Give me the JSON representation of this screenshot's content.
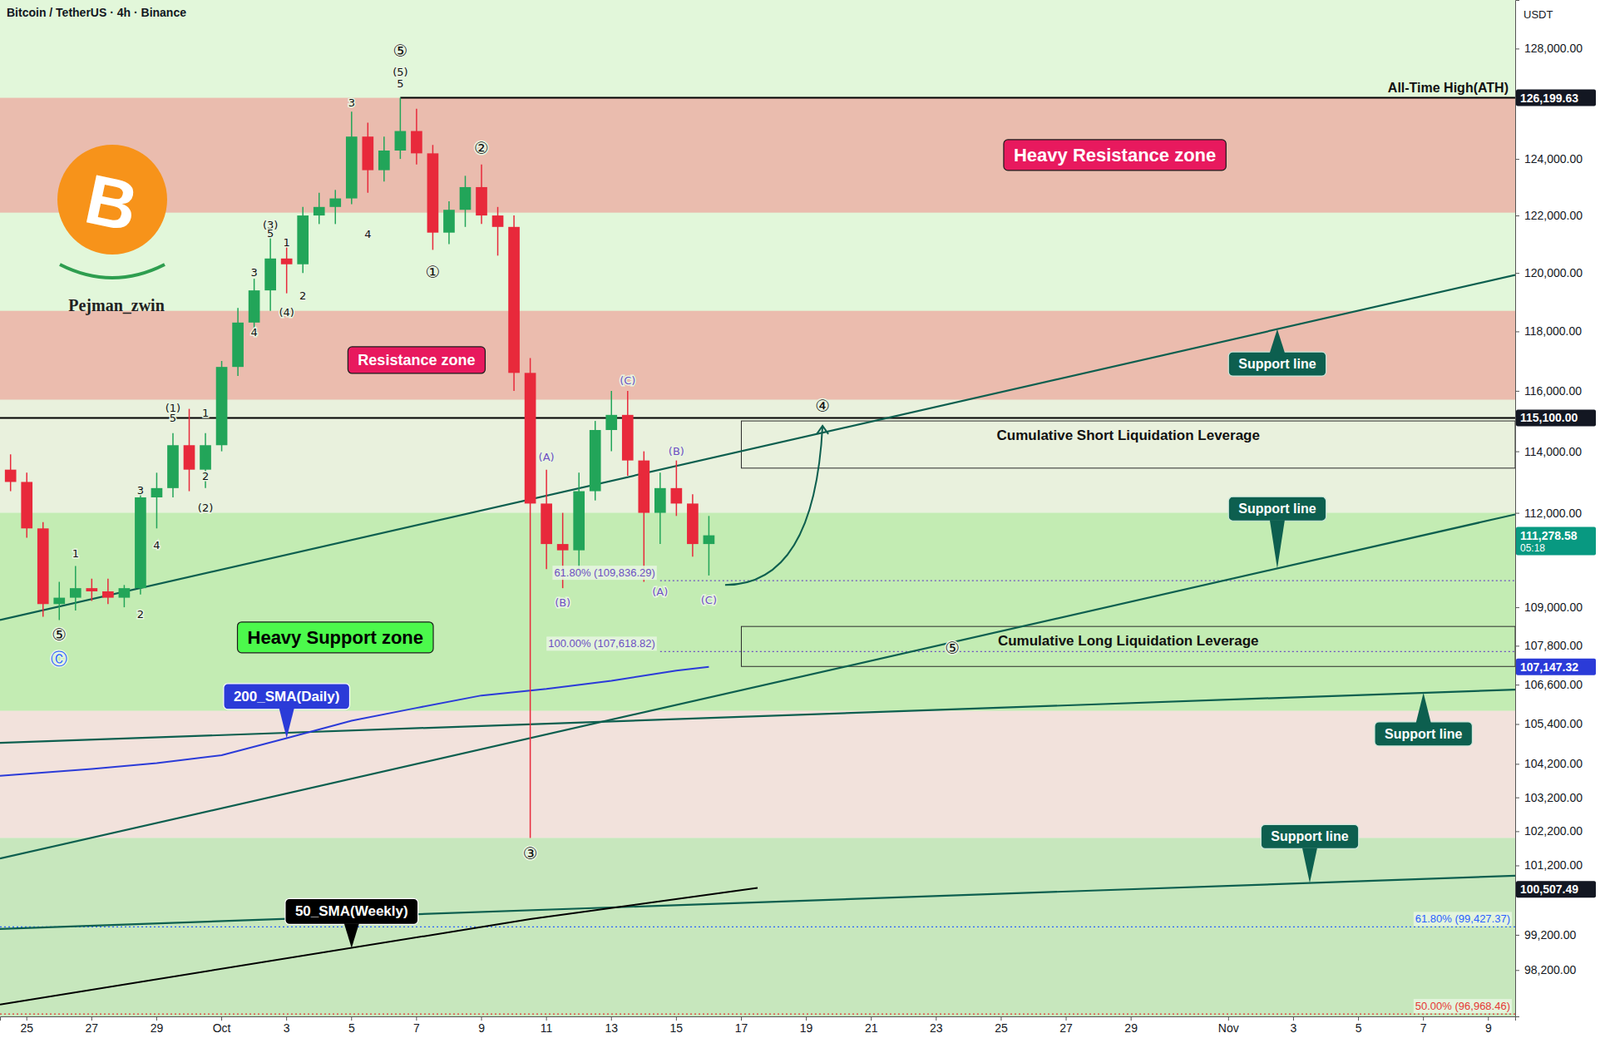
{
  "chart_data": {
    "type": "candlestick",
    "title": "Bitcoin / TetherUS · 4h · Binance",
    "y_label": "USDT",
    "log": "y",
    "grid": false,
    "ylim": [
      96900,
      129800
    ],
    "yticks": [
      {
        "value": 128000,
        "label": "128,000.00"
      },
      {
        "value": 124000,
        "label": "124,000.00"
      },
      {
        "value": 122000,
        "label": "122,000.00"
      },
      {
        "value": 120000,
        "label": "120,000.00"
      },
      {
        "value": 118000,
        "label": "118,000.00"
      },
      {
        "value": 116000,
        "label": "116,000.00"
      },
      {
        "value": 114000,
        "label": "114,000.00"
      },
      {
        "value": 112000,
        "label": "112,000.00"
      },
      {
        "value": 109000,
        "label": "109,000.00"
      },
      {
        "value": 107800,
        "label": "107,800.00"
      },
      {
        "value": 106600,
        "label": "106,600.00"
      },
      {
        "value": 105400,
        "label": "105,400.00"
      },
      {
        "value": 104200,
        "label": "104,200.00"
      },
      {
        "value": 103200,
        "label": "103,200.00"
      },
      {
        "value": 102200,
        "label": "102,200.00"
      },
      {
        "value": 101200,
        "label": "101,200.00"
      },
      {
        "value": 99200,
        "label": "99,200.00"
      },
      {
        "value": 98200,
        "label": "98,200.00"
      }
    ],
    "categories": [
      null,
      "25",
      null,
      null,
      null,
      "27",
      null,
      null,
      null,
      "29",
      null,
      null,
      null,
      "Oct",
      null,
      null,
      null,
      "3",
      null,
      null,
      null,
      "5",
      null,
      null,
      null,
      "7",
      null,
      null,
      null,
      "9",
      null,
      null,
      null,
      "11",
      null,
      null,
      null,
      "13",
      null,
      null,
      null,
      "15",
      null,
      null,
      null,
      "17",
      null,
      null,
      null,
      "19",
      null,
      null,
      null,
      "21",
      null,
      null,
      null,
      "23",
      null,
      null,
      null,
      "25",
      null,
      null,
      null,
      "27",
      null,
      null,
      null,
      "29",
      null,
      null,
      null,
      null,
      null,
      "Nov",
      null,
      null,
      null,
      "3",
      null,
      null,
      null,
      "5",
      null,
      null,
      null,
      "7",
      null,
      null,
      null,
      "9",
      null
    ],
    "open": [
      113400,
      113000,
      111500,
      109100,
      109300,
      109600,
      109500,
      109300,
      109600,
      112500,
      112800,
      114200,
      113400,
      114200,
      116800,
      118300,
      119400,
      120500,
      120300,
      122000,
      122300,
      122600,
      124800,
      123600,
      124300,
      125000,
      124200,
      121400,
      122200,
      123000,
      122000,
      121600,
      116600,
      112300,
      111000,
      110800,
      112700,
      114700,
      115200,
      113700,
      112000,
      112800,
      112300,
      111000,
      null,
      null,
      null,
      null,
      null,
      null,
      null,
      null,
      null,
      null,
      null,
      null,
      null,
      null,
      null,
      null,
      null,
      null,
      null,
      null,
      null,
      null,
      null,
      null,
      null,
      null,
      null,
      null,
      null,
      null,
      null,
      null,
      null,
      null,
      null,
      null,
      null,
      null,
      null,
      null,
      null,
      null,
      null,
      null,
      null,
      null,
      null,
      null,
      null
    ],
    "high": [
      113900,
      113300,
      111700,
      109800,
      110300,
      109900,
      109900,
      109700,
      112700,
      113300,
      114600,
      115400,
      114600,
      117000,
      118800,
      119800,
      121400,
      121000,
      122300,
      122800,
      122900,
      125700,
      125300,
      124800,
      126199.63,
      125800,
      124500,
      122500,
      123400,
      123800,
      122300,
      122000,
      117100,
      113400,
      112000,
      113300,
      115000,
      116000,
      116000,
      114000,
      113300,
      113700,
      112600,
      111900,
      null,
      null,
      null,
      null,
      null,
      null,
      null,
      null,
      null,
      null,
      null,
      null,
      null,
      null,
      null,
      null,
      null,
      null,
      null,
      null,
      null,
      null,
      null,
      null,
      null,
      null,
      null,
      null,
      null,
      null,
      null,
      null,
      null,
      null,
      null,
      null,
      null,
      null,
      null,
      null,
      null,
      null,
      null,
      null,
      null,
      null,
      null,
      null,
      null
    ],
    "low": [
      112700,
      111200,
      108700,
      108600,
      108900,
      109200,
      109100,
      109000,
      109400,
      111500,
      112500,
      112700,
      112800,
      114000,
      116500,
      117900,
      118700,
      119300,
      120000,
      121700,
      121700,
      122400,
      122800,
      123200,
      124000,
      123800,
      120800,
      121000,
      121600,
      121700,
      120600,
      116000,
      102000,
      110200,
      109600,
      109900,
      112400,
      114000,
      113200,
      109800,
      111000,
      111900,
      110600,
      110000,
      null,
      null,
      null,
      null,
      null,
      null,
      null,
      null,
      null,
      null,
      null,
      null,
      null,
      null,
      null,
      null,
      null,
      null,
      null,
      null,
      null,
      null,
      null,
      null,
      null,
      null,
      null,
      null,
      null,
      null,
      null,
      null,
      null,
      null,
      null,
      null,
      null,
      null,
      null,
      null,
      null,
      null,
      null,
      null,
      null,
      null,
      null,
      null,
      null
    ],
    "close": [
      113000,
      111500,
      109100,
      109300,
      109600,
      109500,
      109300,
      109600,
      112500,
      112800,
      114200,
      113400,
      114200,
      116800,
      118300,
      119400,
      120500,
      120300,
      122000,
      122300,
      122600,
      124800,
      123600,
      124300,
      125000,
      124200,
      121400,
      122200,
      123000,
      122000,
      121600,
      116600,
      112300,
      111000,
      110800,
      112700,
      114700,
      115200,
      113700,
      112000,
      112800,
      112300,
      111000,
      111278.58,
      null,
      null,
      null,
      null,
      null,
      null,
      null,
      null,
      null,
      null,
      null,
      null,
      null,
      null,
      null,
      null,
      null,
      null,
      null,
      null,
      null,
      null,
      null,
      null,
      null,
      null,
      null,
      null,
      null,
      null,
      null,
      null,
      null,
      null,
      null,
      null,
      null,
      null,
      null,
      null,
      null,
      null,
      null,
      null,
      null,
      null,
      null,
      null,
      null
    ],
    "colors": {
      "up": "#22a559",
      "down": "#e8293b"
    },
    "zones": [
      {
        "label": "Heavy Resistance zone",
        "from": 122100,
        "to": 126199.63,
        "color": "#eabcae",
        "label_color": "#e8195e",
        "label_text_color": "#ffffff",
        "label_at": [
          68,
          124140
        ]
      },
      {
        "label": "Resistance zone",
        "from": 115700,
        "to": 118700,
        "color": "#ebbcae",
        "label_color": "#e8195e",
        "label_text_color": "#ffffff",
        "label_at": [
          25,
          117030
        ]
      },
      {
        "from": 112000,
        "to": 115700,
        "color": "#e9f1dd"
      },
      {
        "label": "Heavy Support zone",
        "from": 105800,
        "to": 112000,
        "color": "#c3ecb3",
        "label_color": "#4cf94c",
        "label_text_color": "#000000",
        "label_at": [
          20,
          108060
        ]
      },
      {
        "from": 102000,
        "to": 105800,
        "color": "#f2e2dc"
      },
      {
        "from": 96900,
        "to": 102000,
        "color": "#c7e7bd"
      }
    ],
    "levels": [
      {
        "label": "All-Time High(ATH)",
        "value": 126199.63,
        "x": [
          24,
          92
        ],
        "color": "#000000"
      },
      {
        "value": 115100,
        "x": [
          0,
          92
        ],
        "color": "#000000"
      }
    ],
    "liquidation_zones": [
      {
        "label": "Cumulative Short Liquidation Leverage",
        "from": 113450,
        "to": 115000,
        "x": [
          45,
          92
        ]
      },
      {
        "label": "Cumulative Long Liquidation Leverage",
        "from": 107160,
        "to": 108400,
        "x": [
          45,
          92
        ]
      }
    ],
    "fib_levels": [
      {
        "label": "61.80% (109,836.29)",
        "value": 109836.29,
        "x": [
          40,
          92
        ],
        "color": "#6d4fc2"
      },
      {
        "label": "100.00% (107,618.82)",
        "value": 107618.82,
        "x": [
          40,
          92
        ],
        "color": "#6d4fc2"
      },
      {
        "label": "61.80% (99,427.37)",
        "value": 99427.37,
        "x": [
          0,
          92
        ],
        "color": "#2962ff"
      },
      {
        "label": "50.00% (96,968.46)",
        "value": 96968.46,
        "x": [
          0,
          92
        ],
        "color": "#e53935"
      }
    ],
    "support_lines": [
      {
        "label": "Support line",
        "x": [
          0,
          92
        ],
        "values": [
          108600,
          119930
        ],
        "color": "#0d5f4f",
        "label_at": [
          78,
          116900
        ]
      },
      {
        "label": "Support line",
        "x": [
          0,
          92
        ],
        "values": [
          101400,
          111950
        ],
        "color": "#0d5f4f",
        "label_at": [
          78,
          112130
        ]
      },
      {
        "label": "Support line",
        "x": [
          0,
          92
        ],
        "values": [
          104830,
          106450
        ],
        "color": "#0d5f4f",
        "label_at": [
          87,
          105100
        ]
      },
      {
        "label": "Support line",
        "x": [
          0,
          92
        ],
        "values": [
          99370,
          100900
        ],
        "color": "#0d5f4f",
        "label_at": [
          80,
          102040
        ]
      }
    ],
    "indicators": [
      {
        "name": "200_SMA(Daily)",
        "color": "#2b3bd8",
        "x": [
          0,
          5,
          9,
          13,
          17,
          21,
          25,
          29,
          33,
          37,
          41,
          43
        ],
        "values": [
          103840,
          104050,
          104220,
          104460,
          104970,
          105500,
          105890,
          106270,
          106470,
          106720,
          107030,
          107147.32
        ],
        "label_at": [
          17,
          106240
        ]
      },
      {
        "name": "50_SMA(Weekly)",
        "color": "#000000",
        "x": [
          0,
          32,
          46
        ],
        "values": [
          97230,
          99650,
          100550
        ],
        "label_at": [
          21,
          99870
        ]
      }
    ],
    "arrow": {
      "x": [
        44,
        50
      ],
      "values": [
        109700,
        114840
      ],
      "color": "#0d5f4f"
    },
    "waves": [
      {
        "text": "⑤",
        "x": 24,
        "value": 127926
      },
      {
        "text": "(5)",
        "x": 24,
        "value": 127150
      },
      {
        "text": "5",
        "x": 24,
        "value": 126710
      },
      {
        "text": "3",
        "x": 21,
        "value": 126020
      },
      {
        "text": "4",
        "x": 22,
        "value": 121360
      },
      {
        "text": "(3)",
        "x": 16,
        "value": 121680
      },
      {
        "text": "5",
        "x": 16,
        "value": 121370
      },
      {
        "text": "1",
        "x": 17,
        "value": 121060
      },
      {
        "text": "2",
        "x": 18,
        "value": 119220
      },
      {
        "text": "(4)",
        "x": 17,
        "value": 118660
      },
      {
        "text": "3",
        "x": 15,
        "value": 120010
      },
      {
        "text": "4",
        "x": 15,
        "value": 117960
      },
      {
        "text": "(1)",
        "x": 10,
        "value": 115440
      },
      {
        "text": "5",
        "x": 10,
        "value": 115110
      },
      {
        "text": "1",
        "x": 12,
        "value": 115270
      },
      {
        "text": "2",
        "x": 12,
        "value": 113180
      },
      {
        "text": "(2)",
        "x": 12,
        "value": 112150
      },
      {
        "text": "3",
        "x": 8,
        "value": 112720
      },
      {
        "text": "4",
        "x": 9,
        "value": 110950
      },
      {
        "text": "1",
        "x": 4,
        "value": 110690
      },
      {
        "text": "2",
        "x": 8,
        "value": 108770
      },
      {
        "text": "⑤",
        "x": 3,
        "value": 108150
      },
      {
        "text": "Ⓒ",
        "x": 3,
        "value": 107410,
        "color": "#2962ff"
      },
      {
        "text": "①",
        "x": 26,
        "value": 120040
      },
      {
        "text": "②",
        "x": 29,
        "value": 124380
      },
      {
        "text": "③",
        "x": 32,
        "value": 101560
      },
      {
        "text": "④",
        "x": 50,
        "value": 115500
      },
      {
        "text": "⑤",
        "x": 58,
        "value": 107730
      },
      {
        "text": "(A)",
        "x": 33,
        "value": 113800,
        "color": "#6d4fc2"
      },
      {
        "text": "(B)",
        "x": 34,
        "value": 109150,
        "color": "#6d4fc2"
      },
      {
        "text": "(C)",
        "x": 38,
        "value": 116340,
        "color": "#6d4fc2"
      },
      {
        "text": "(A)",
        "x": 40,
        "value": 109490,
        "color": "#6d4fc2"
      },
      {
        "text": "(B)",
        "x": 41,
        "value": 114000,
        "color": "#6d4fc2"
      },
      {
        "text": "(C)",
        "x": 43,
        "value": 109220,
        "color": "#6d4fc2"
      }
    ],
    "price_tags": [
      {
        "value": 126199.63,
        "label": "126,199.63",
        "color": "#131722"
      },
      {
        "value": 115100,
        "label": "115,100.00",
        "color": "#131722"
      },
      {
        "value": 111278.58,
        "label": "111,278.58",
        "color": "#089981",
        "countdown": "05:18"
      },
      {
        "value": 107147.32,
        "label": "107,147.32",
        "color": "#2b3bd8"
      },
      {
        "value": 100507.49,
        "label": "100,507.49",
        "color": "#131722"
      }
    ],
    "logo": {
      "symbol": "B",
      "text": "Pejman_zwin"
    }
  }
}
